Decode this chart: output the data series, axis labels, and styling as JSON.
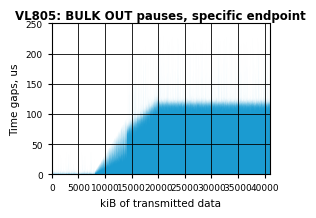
{
  "title": "VL805: BULK OUT pauses, specific endpoint",
  "xlabel": "kiB of transmitted data",
  "ylabel": "Time gaps, us",
  "xlim": [
    0,
    41000
  ],
  "ylim": [
    0,
    250
  ],
  "xticks": [
    0,
    5000,
    10000,
    15000,
    20000,
    25000,
    30000,
    35000,
    40000
  ],
  "yticks": [
    0,
    50,
    100,
    150,
    200,
    250
  ],
  "line_color": "#1b9bd1",
  "background_color": "#ffffff",
  "grid_color": "#000000",
  "title_fontsize": 8.5,
  "label_fontsize": 7.5,
  "tick_fontsize": 6.5,
  "n_points": 41000,
  "seed": 7
}
